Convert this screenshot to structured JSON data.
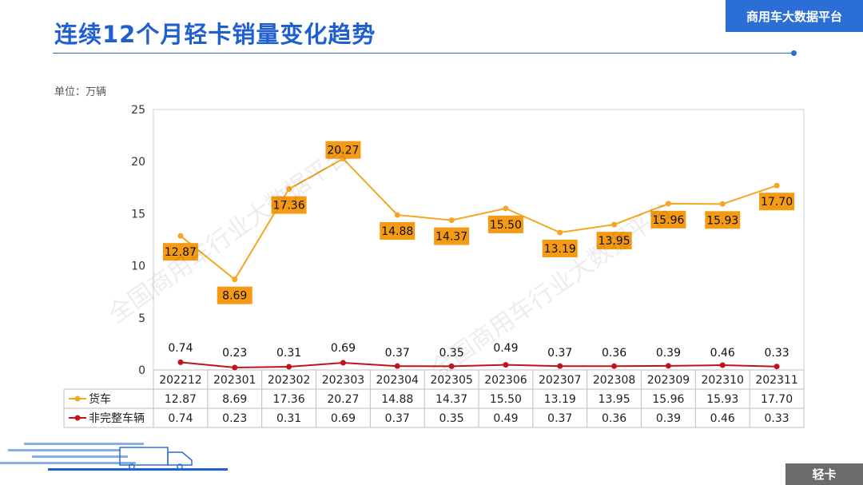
{
  "header": {
    "title": "连续12个月轻卡销量变化趋势",
    "brand": "商用车大数据平台"
  },
  "unit_label": "单位：万辆",
  "footer_tag": "轻卡",
  "watermark": "全国商用车行业大数据平台",
  "colors": {
    "brand": "#2b6fd6",
    "truck": "#f5a623",
    "truck_label_bg": "#f59a14",
    "incomplete": "#c0141c"
  },
  "chart_data": {
    "type": "line",
    "title": "连续12个月轻卡销量变化趋势",
    "ylabel": "万辆",
    "ylim": [
      0,
      25
    ],
    "yticks": [
      "0",
      "5",
      "10",
      "15",
      "20",
      "25"
    ],
    "categories": [
      "202212",
      "202301",
      "202302",
      "202303",
      "202304",
      "202305",
      "202306",
      "202307",
      "202308",
      "202309",
      "202310",
      "202311"
    ],
    "series": [
      {
        "name": "货车",
        "values": [
          12.87,
          8.69,
          17.36,
          20.27,
          14.88,
          14.37,
          15.5,
          13.19,
          13.95,
          15.96,
          15.93,
          17.7
        ],
        "labels": [
          "12.87",
          "8.69",
          "17.36",
          "20.27",
          "14.88",
          "14.37",
          "15.50",
          "13.19",
          "13.95",
          "15.96",
          "15.93",
          "17.70"
        ]
      },
      {
        "name": "非完整车辆",
        "values": [
          0.74,
          0.23,
          0.31,
          0.69,
          0.37,
          0.35,
          0.49,
          0.37,
          0.36,
          0.39,
          0.46,
          0.33
        ],
        "labels": [
          "0.74",
          "0.23",
          "0.31",
          "0.69",
          "0.37",
          "0.35",
          "0.49",
          "0.37",
          "0.36",
          "0.39",
          "0.46",
          "0.33"
        ]
      }
    ]
  }
}
